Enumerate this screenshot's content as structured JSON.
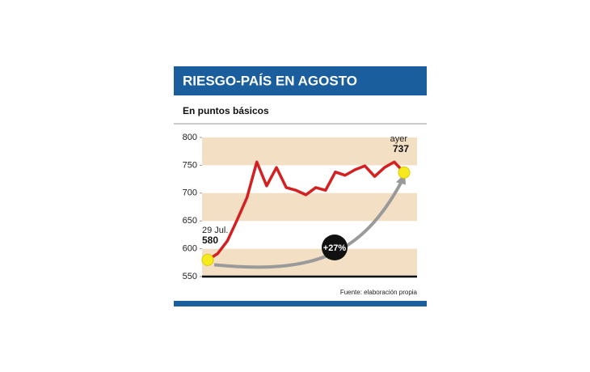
{
  "chart_data": {
    "type": "line",
    "title": "RIESGO-PAÍS EN AGOSTO",
    "subtitle": "En puntos básicos",
    "source": "Fuente: elaboración propia",
    "annotation": "+27%",
    "categories": [
      "29 Jul.",
      null,
      null,
      null,
      null,
      null,
      null,
      null,
      null,
      null,
      null,
      null,
      null,
      null,
      null,
      null,
      null,
      null,
      null,
      null,
      "ayer"
    ],
    "series": [
      {
        "color": "#d42020",
        "values": [
          580,
          591,
          614,
          652,
          692,
          756,
          713,
          746,
          710,
          705,
          697,
          710,
          705,
          738,
          732,
          742,
          749,
          730,
          746,
          756,
          737
        ]
      }
    ],
    "ylim": [
      550,
      800
    ],
    "yticks": [
      550,
      600,
      650,
      700,
      750,
      800
    ],
    "band_color": "#f3dfc4",
    "header_color": "#1b5e9e"
  }
}
